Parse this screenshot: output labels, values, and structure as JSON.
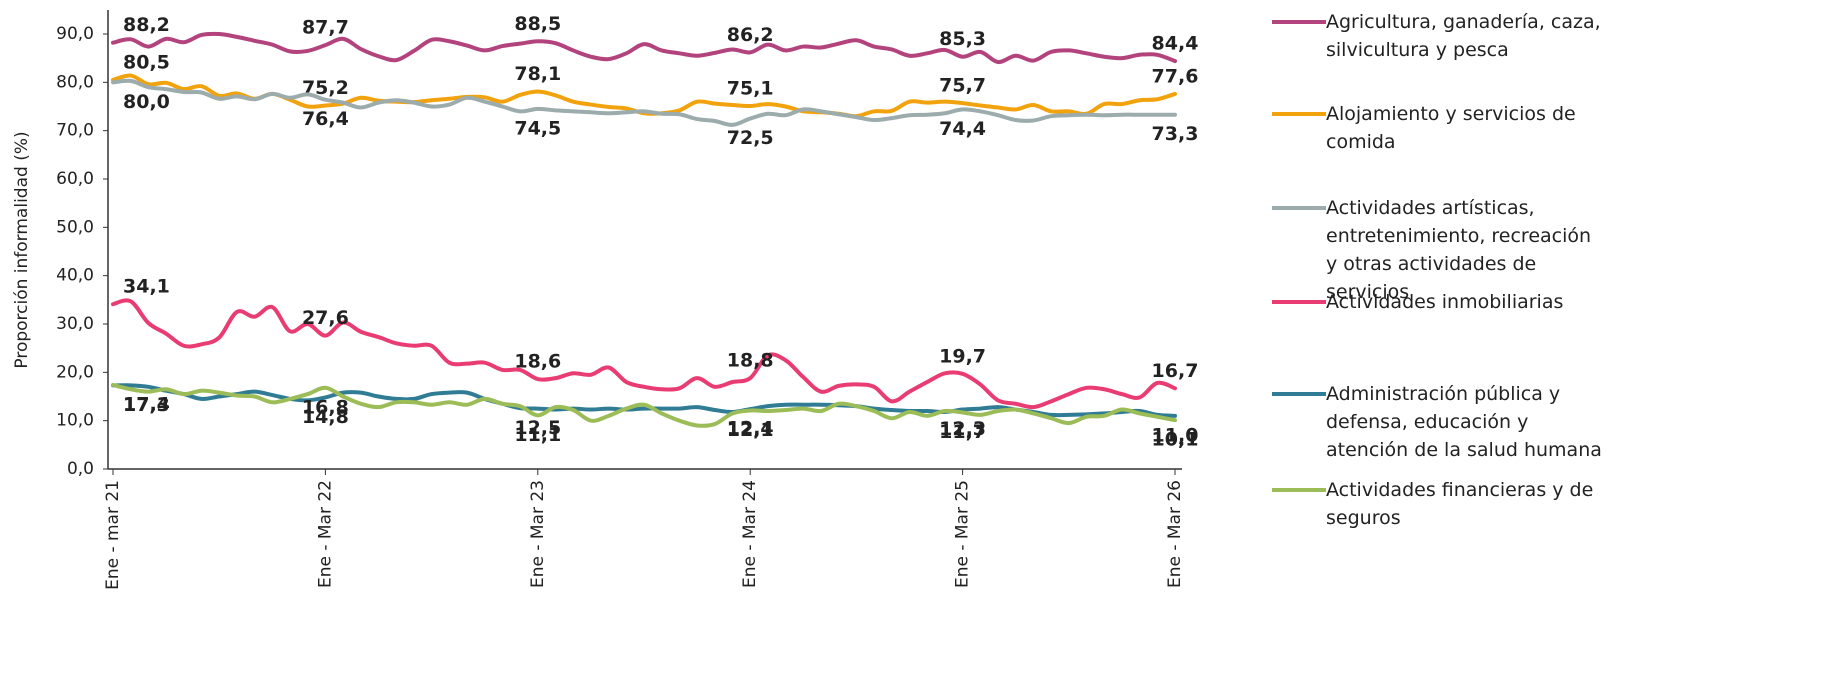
{
  "chart_data": {
    "type": "line",
    "y_label": "Proporción informalidad (%)",
    "categories": [
      "Ene - mar 21",
      null,
      null,
      null,
      null,
      null,
      null,
      null,
      null,
      null,
      null,
      null,
      "Ene  - Mar 22",
      null,
      null,
      null,
      null,
      null,
      null,
      null,
      null,
      null,
      null,
      null,
      "Ene - Mar 23",
      null,
      null,
      null,
      null,
      null,
      null,
      null,
      null,
      null,
      null,
      null,
      "Ene - Mar 24",
      null,
      null,
      null,
      null,
      null,
      null,
      null,
      null,
      null,
      null,
      null,
      "Ene - Mar 25",
      null,
      null,
      null,
      null,
      null,
      null,
      null,
      null,
      null,
      null,
      null,
      "Ene - Mar 26"
    ],
    "ylim": [
      0,
      90
    ],
    "yticks": [
      {
        "value": 0,
        "label": "0,0"
      },
      {
        "value": 10,
        "label": "10,0"
      },
      {
        "value": 20,
        "label": "20,0"
      },
      {
        "value": 30,
        "label": "30,0"
      },
      {
        "value": 40,
        "label": "40,0"
      },
      {
        "value": 50,
        "label": "50,0"
      },
      {
        "value": 60,
        "label": "60,0"
      },
      {
        "value": 70,
        "label": "70,0"
      },
      {
        "value": 80,
        "label": "80,0"
      },
      {
        "value": 90,
        "label": "90,0"
      }
    ],
    "grid": false,
    "legend": "right",
    "series": [
      {
        "name": "Agricultura, ganadería, caza, silvicultura y pesca",
        "color": "#b3437c",
        "values": [
          88.2,
          88.9,
          87.4,
          89.0,
          88.3,
          89.8,
          90.0,
          89.4,
          88.6,
          87.8,
          86.4,
          86.5,
          87.7,
          89.0,
          86.9,
          85.4,
          84.6,
          86.5,
          88.8,
          88.5,
          87.6,
          86.6,
          87.5,
          88.0,
          88.5,
          88.1,
          86.6,
          85.3,
          84.8,
          86.0,
          87.9,
          86.6,
          86.0,
          85.5,
          86.1,
          86.8,
          86.2,
          87.8,
          86.6,
          87.4,
          87.2,
          88.0,
          88.7,
          87.4,
          86.8,
          85.5,
          86.0,
          86.7,
          85.3,
          86.3,
          84.2,
          85.5,
          84.5,
          86.3,
          86.6,
          86.0,
          85.3,
          85.0,
          85.7,
          85.7,
          84.4
        ],
        "value_labels": [
          "88,2",
          null,
          null,
          null,
          null,
          null,
          null,
          null,
          null,
          null,
          null,
          null,
          "87,7",
          null,
          null,
          null,
          null,
          null,
          null,
          null,
          null,
          null,
          null,
          null,
          "88,5",
          null,
          null,
          null,
          null,
          null,
          null,
          null,
          null,
          null,
          null,
          null,
          "86,2",
          null,
          null,
          null,
          null,
          null,
          null,
          null,
          null,
          null,
          null,
          null,
          "85,3",
          null,
          null,
          null,
          null,
          null,
          null,
          null,
          null,
          null,
          null,
          null,
          "84,4"
        ]
      },
      {
        "name": "Alojamiento y servicios de comida",
        "color": "#f2a20c",
        "values": [
          80.5,
          81.4,
          79.6,
          79.9,
          78.6,
          79.2,
          77.2,
          77.7,
          76.6,
          77.6,
          76.4,
          75.0,
          75.2,
          75.6,
          76.8,
          76.2,
          76.0,
          75.9,
          76.3,
          76.6,
          77.0,
          76.9,
          76.0,
          77.4,
          78.1,
          77.3,
          76.0,
          75.4,
          74.9,
          74.6,
          73.6,
          73.6,
          74.2,
          76.0,
          75.6,
          75.3,
          75.1,
          75.5,
          75.0,
          74.0,
          73.8,
          73.5,
          73.0,
          74.0,
          74.1,
          76.0,
          75.8,
          76.0,
          75.7,
          75.2,
          74.8,
          74.4,
          75.3,
          74.0,
          74.0,
          73.5,
          75.5,
          75.5,
          76.3,
          76.5,
          77.6
        ],
        "value_labels": [
          "80,5",
          null,
          null,
          null,
          null,
          null,
          null,
          null,
          null,
          null,
          null,
          null,
          "75,2",
          null,
          null,
          null,
          null,
          null,
          null,
          null,
          null,
          null,
          null,
          null,
          "78,1",
          null,
          null,
          null,
          null,
          null,
          null,
          null,
          null,
          null,
          null,
          null,
          "75,1",
          null,
          null,
          null,
          null,
          null,
          null,
          null,
          null,
          null,
          null,
          null,
          "75,7",
          null,
          null,
          null,
          null,
          null,
          null,
          null,
          null,
          null,
          null,
          null,
          "77,6"
        ]
      },
      {
        "name": "Actividades artísticas, entretenimiento, recreación y otras actividades de servicios",
        "color": "#9cabab",
        "values": [
          80.0,
          80.3,
          79.0,
          78.6,
          78.0,
          77.9,
          76.6,
          77.1,
          76.5,
          77.6,
          76.8,
          77.5,
          76.4,
          75.8,
          74.8,
          75.8,
          76.3,
          75.8,
          75.0,
          75.4,
          76.8,
          76.0,
          75.0,
          74.0,
          74.5,
          74.2,
          74.0,
          73.8,
          73.6,
          73.8,
          74.0,
          73.5,
          73.4,
          72.4,
          72.0,
          71.2,
          72.5,
          73.5,
          73.2,
          74.4,
          74.0,
          73.4,
          72.8,
          72.2,
          72.6,
          73.2,
          73.3,
          73.6,
          74.4,
          74.0,
          73.2,
          72.2,
          72.1,
          73.0,
          73.2,
          73.3,
          73.2,
          73.3,
          73.3,
          73.3,
          73.3
        ],
        "value_labels": [
          "80,0",
          null,
          null,
          null,
          null,
          null,
          null,
          null,
          null,
          null,
          null,
          null,
          "76,4",
          null,
          null,
          null,
          null,
          null,
          null,
          null,
          null,
          null,
          null,
          null,
          "74,5",
          null,
          null,
          null,
          null,
          null,
          null,
          null,
          null,
          null,
          null,
          null,
          "72,5",
          null,
          null,
          null,
          null,
          null,
          null,
          null,
          null,
          null,
          null,
          null,
          "74,4",
          null,
          null,
          null,
          null,
          null,
          null,
          null,
          null,
          null,
          null,
          null,
          "73,3"
        ]
      },
      {
        "name": "Actividades inmobiliarias",
        "color": "#e83c73",
        "values": [
          34.1,
          34.7,
          30.2,
          28.0,
          25.5,
          25.8,
          27.2,
          32.5,
          31.5,
          33.5,
          28.5,
          30.0,
          27.6,
          30.3,
          28.4,
          27.3,
          26.0,
          25.5,
          25.5,
          22.0,
          21.8,
          22.0,
          20.5,
          20.5,
          18.6,
          18.8,
          19.8,
          19.5,
          21.0,
          18.0,
          17.0,
          16.5,
          16.7,
          18.8,
          17.0,
          18.0,
          18.8,
          23.5,
          22.5,
          19.0,
          16.0,
          17.2,
          17.5,
          17.0,
          14.0,
          16.0,
          18.0,
          19.8,
          19.7,
          17.5,
          14.2,
          13.5,
          12.8,
          14.0,
          15.5,
          16.8,
          16.5,
          15.5,
          14.8,
          17.8,
          16.7
        ],
        "value_labels": [
          "34,1",
          null,
          null,
          null,
          null,
          null,
          null,
          null,
          null,
          null,
          null,
          null,
          "27,6",
          null,
          null,
          null,
          null,
          null,
          null,
          null,
          null,
          null,
          null,
          null,
          "18,6",
          null,
          null,
          null,
          null,
          null,
          null,
          null,
          null,
          null,
          null,
          null,
          "18,8",
          null,
          null,
          null,
          null,
          null,
          null,
          null,
          null,
          null,
          null,
          null,
          "19,7",
          null,
          null,
          null,
          null,
          null,
          null,
          null,
          null,
          null,
          null,
          null,
          "16,7"
        ]
      },
      {
        "name": "Administración pública y defensa, educación y atención de la salud humana",
        "color": "#2f7c94",
        "values": [
          17.3,
          17.3,
          17.0,
          16.2,
          15.5,
          14.5,
          15.0,
          15.5,
          16.0,
          15.3,
          14.5,
          14.2,
          14.8,
          15.8,
          15.8,
          15.0,
          14.5,
          14.5,
          15.5,
          15.8,
          15.8,
          14.5,
          13.5,
          12.6,
          12.5,
          12.3,
          12.5,
          12.3,
          12.5,
          12.3,
          12.5,
          12.5,
          12.5,
          12.8,
          12.2,
          11.8,
          12.4,
          13.0,
          13.3,
          13.3,
          13.3,
          13.2,
          13.0,
          12.5,
          12.2,
          12.0,
          12.0,
          11.8,
          12.3,
          12.5,
          12.8,
          12.3,
          11.8,
          11.2,
          11.2,
          11.3,
          11.5,
          11.8,
          12.0,
          11.2,
          11.0
        ],
        "value_labels": [
          "17,3",
          null,
          null,
          null,
          null,
          null,
          null,
          null,
          null,
          null,
          null,
          null,
          "14,8",
          null,
          null,
          null,
          null,
          null,
          null,
          null,
          null,
          null,
          null,
          null,
          "12,5",
          null,
          null,
          null,
          null,
          null,
          null,
          null,
          null,
          null,
          null,
          null,
          "12,4",
          null,
          null,
          null,
          null,
          null,
          null,
          null,
          null,
          null,
          null,
          null,
          "12,3",
          null,
          null,
          null,
          null,
          null,
          null,
          null,
          null,
          null,
          null,
          null,
          "11,0"
        ]
      },
      {
        "name": "Actividades financieras y de seguros",
        "color": "#9cbc58",
        "values": [
          17.4,
          16.5,
          16.0,
          16.5,
          15.5,
          16.2,
          15.8,
          15.2,
          15.0,
          13.8,
          14.5,
          15.5,
          16.8,
          15.0,
          13.5,
          12.8,
          13.8,
          13.8,
          13.3,
          13.8,
          13.3,
          14.5,
          13.5,
          13.0,
          11.1,
          12.8,
          12.2,
          10.0,
          11.0,
          12.5,
          13.3,
          11.5,
          10.0,
          9.0,
          9.3,
          11.5,
          12.1,
          12.0,
          12.2,
          12.5,
          12.0,
          13.5,
          13.0,
          12.0,
          10.5,
          11.8,
          11.0,
          12.0,
          11.7,
          11.2,
          12.0,
          12.3,
          11.5,
          10.5,
          9.5,
          10.8,
          11.0,
          12.3,
          11.5,
          10.8,
          10.1
        ],
        "value_labels": [
          "17,4",
          null,
          null,
          null,
          null,
          null,
          null,
          null,
          null,
          null,
          null,
          null,
          "16,8",
          null,
          null,
          null,
          null,
          null,
          null,
          null,
          null,
          null,
          null,
          null,
          "11,1",
          null,
          null,
          null,
          null,
          null,
          null,
          null,
          null,
          null,
          null,
          null,
          "12,1",
          null,
          null,
          null,
          null,
          null,
          null,
          null,
          null,
          null,
          null,
          null,
          "11,7",
          null,
          null,
          null,
          null,
          null,
          null,
          null,
          null,
          null,
          null,
          null,
          "10,1"
        ]
      }
    ]
  }
}
